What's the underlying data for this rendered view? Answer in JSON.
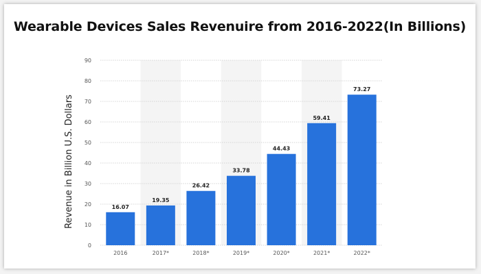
{
  "chart_data": {
    "type": "bar",
    "title": "Wearable Devices Sales Revenuire from 2016-2022(In Billions)",
    "ylabel": "Revenue in Billion U.S. Dollars",
    "xlabel": "",
    "categories": [
      "2016",
      "2017*",
      "2018*",
      "2019*",
      "2020*",
      "2021*",
      "2022*"
    ],
    "values": [
      16.07,
      19.35,
      26.42,
      33.78,
      44.43,
      59.41,
      73.27
    ],
    "data_labels": [
      "16.07",
      "19.35",
      "26.42",
      "33.78",
      "44.43",
      "59.41",
      "73.27"
    ],
    "ylim": [
      0,
      90
    ],
    "yticks": [
      0,
      10,
      20,
      30,
      40,
      50,
      60,
      70,
      80,
      90
    ],
    "grid": true,
    "bar_color": "#2772dc",
    "alt_band_color": "#f4f4f4"
  }
}
